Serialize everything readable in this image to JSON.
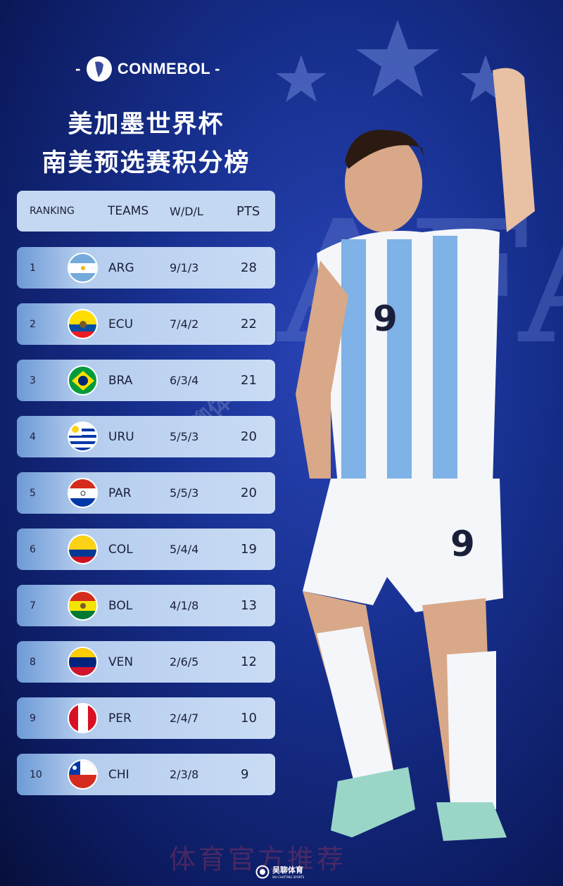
{
  "brand": {
    "logo_text": "CONMEBOL"
  },
  "title": {
    "line1": "美加墨世界杯",
    "line2": "南美预选赛积分榜"
  },
  "table": {
    "headers": {
      "ranking": "RANKING",
      "teams": "TEAMS",
      "wdl": "W/D/L",
      "pts": "PTS"
    },
    "rows": [
      {
        "rank": "1",
        "team": "ARG",
        "wdl": "9/1/3",
        "pts": "28"
      },
      {
        "rank": "2",
        "team": "ECU",
        "wdl": "7/4/2",
        "pts": "22"
      },
      {
        "rank": "3",
        "team": "BRA",
        "wdl": "6/3/4",
        "pts": "21"
      },
      {
        "rank": "4",
        "team": "URU",
        "wdl": "5/5/3",
        "pts": "20"
      },
      {
        "rank": "5",
        "team": "PAR",
        "wdl": "5/5/3",
        "pts": "20"
      },
      {
        "rank": "6",
        "team": "COL",
        "wdl": "5/4/4",
        "pts": "19"
      },
      {
        "rank": "7",
        "team": "BOL",
        "wdl": "4/1/8",
        "pts": "13"
      },
      {
        "rank": "8",
        "team": "VEN",
        "wdl": "2/6/5",
        "pts": "12"
      },
      {
        "rank": "9",
        "team": "PER",
        "wdl": "2/4/7",
        "pts": "10"
      },
      {
        "rank": "10",
        "team": "CHI",
        "wdl": "2/3/8",
        "pts": "9"
      }
    ]
  },
  "watermark": {
    "text": "体育官方推荐",
    "logo_name": "吴聊体育",
    "logo_sub": "WU CHATTING SPORTS"
  },
  "colors": {
    "background": "#17308f",
    "row": "#cadcf4",
    "accent": "#6d9ad6"
  }
}
